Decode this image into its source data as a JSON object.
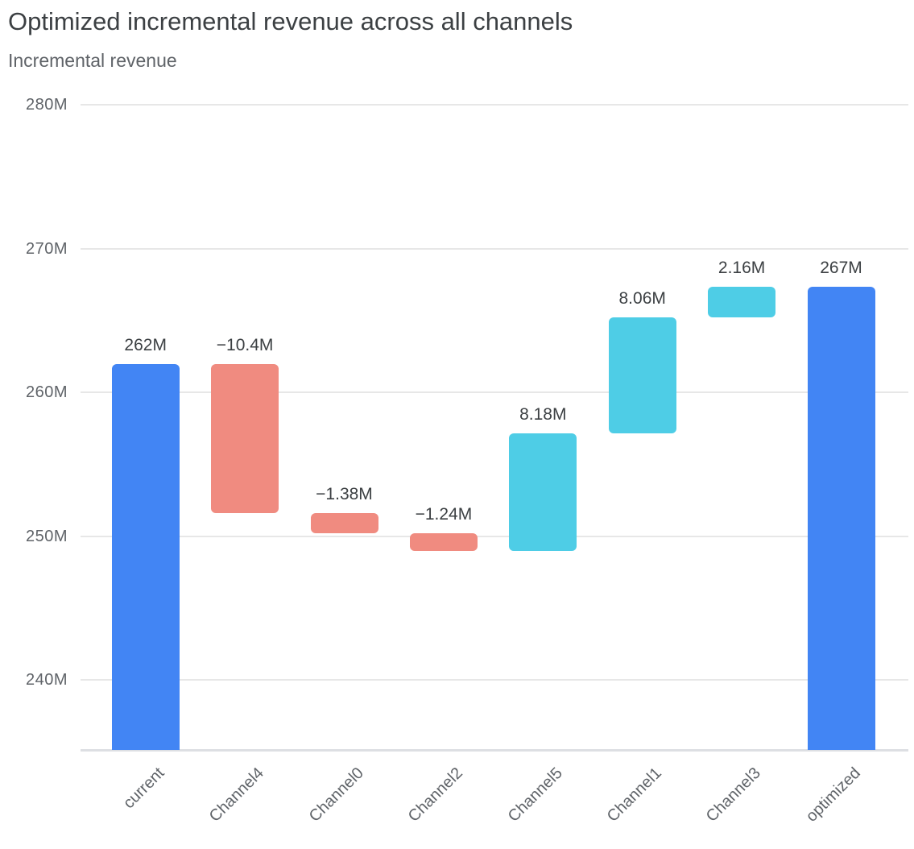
{
  "header": {
    "title": "Optimized incremental revenue across all channels",
    "subtitle": "Incremental revenue"
  },
  "chart_data": {
    "type": "waterfall-bar",
    "title": "Optimized incremental revenue across all channels",
    "subtitle": "Incremental revenue",
    "unit": "M",
    "categories": [
      "current",
      "Channel4",
      "Channel0",
      "Channel2",
      "Channel5",
      "Channel1",
      "Channel3",
      "optimized"
    ],
    "bars": [
      {
        "label": "current",
        "kind": "total",
        "value": 262,
        "display": "262M",
        "start": 0,
        "end": 262
      },
      {
        "label": "Channel4",
        "kind": "decrease",
        "value": -10.4,
        "display": "−10.4M",
        "start": 262,
        "end": 251.6
      },
      {
        "label": "Channel0",
        "kind": "decrease",
        "value": -1.38,
        "display": "−1.38M",
        "start": 251.6,
        "end": 250.22
      },
      {
        "label": "Channel2",
        "kind": "decrease",
        "value": -1.24,
        "display": "−1.24M",
        "start": 250.22,
        "end": 248.98
      },
      {
        "label": "Channel5",
        "kind": "increase",
        "value": 8.18,
        "display": "8.18M",
        "start": 248.98,
        "end": 257.16
      },
      {
        "label": "Channel1",
        "kind": "increase",
        "value": 8.06,
        "display": "8.06M",
        "start": 257.16,
        "end": 265.22
      },
      {
        "label": "Channel3",
        "kind": "increase",
        "value": 2.16,
        "display": "2.16M",
        "start": 265.22,
        "end": 267.38
      },
      {
        "label": "optimized",
        "kind": "total",
        "value": 267.38,
        "display": "267M",
        "start": 0,
        "end": 267.38
      }
    ],
    "y_axis": {
      "ticks": [
        "280M",
        "270M",
        "260M",
        "250M",
        "240M"
      ],
      "tick_values": [
        280,
        270,
        260,
        250,
        240
      ],
      "min": 235.15,
      "max": 283
    },
    "colors": {
      "total": "#4285f4",
      "increase": "#4ecde6",
      "decrease": "#f08b80",
      "gridline": "#e7e7e7",
      "axis_line": "#dddfe3",
      "title_text": "#3c4043",
      "muted_text": "#5f6368"
    },
    "grid": true,
    "legend": "none"
  }
}
